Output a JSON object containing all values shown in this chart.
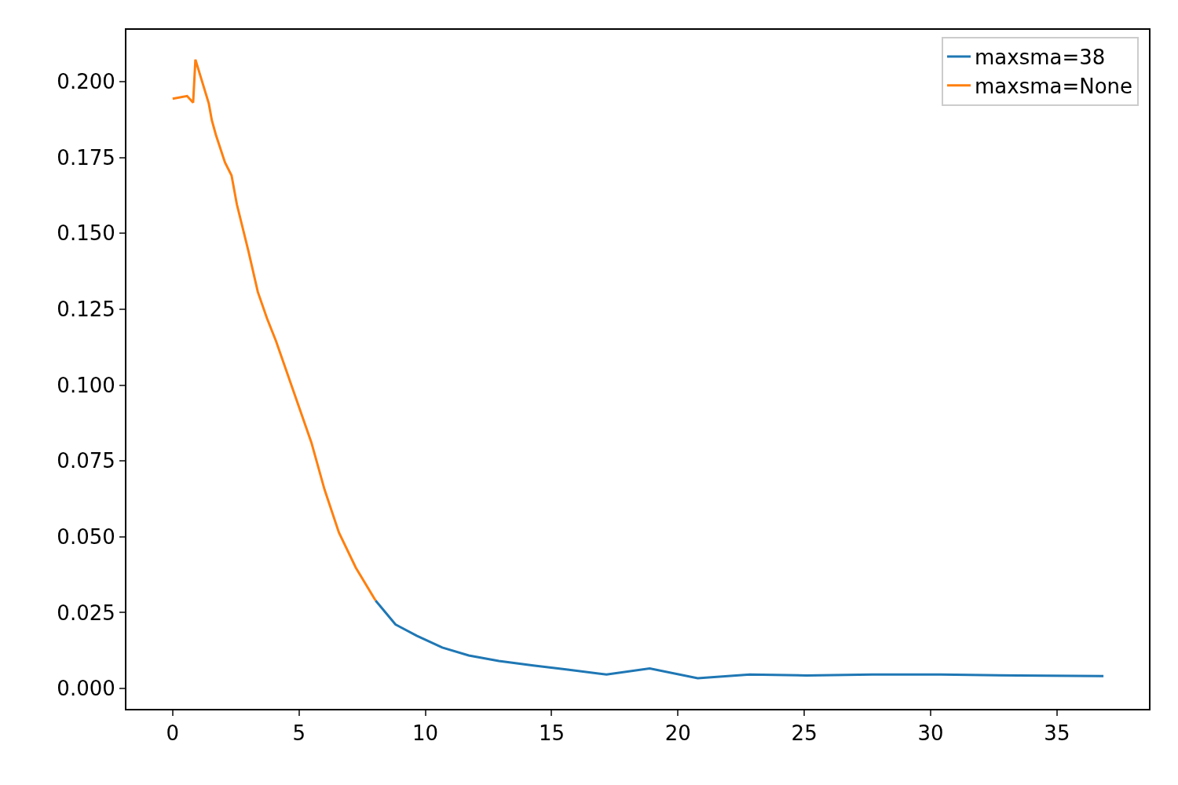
{
  "chart_data": {
    "type": "line",
    "series": [
      {
        "name": "maxsma=38",
        "color": "#1f77b4",
        "x": [
          8.03,
          8.82,
          9.66,
          10.67,
          11.72,
          12.91,
          14.27,
          15.57,
          17.17,
          18.88,
          20.78,
          22.84,
          25.09,
          27.69,
          30.39,
          33.5,
          36.84
        ],
        "values": [
          0.029,
          0.0211,
          0.0174,
          0.0135,
          0.0109,
          0.0091,
          0.0076,
          0.0063,
          0.0046,
          0.0066,
          0.0034,
          0.0046,
          0.0043,
          0.0046,
          0.0046,
          0.0043,
          0.0041
        ]
      },
      {
        "name": "maxsma=None",
        "color": "#ff7f0e",
        "x": [
          0,
          0.57,
          0.81,
          0.9,
          1.43,
          1.55,
          1.71,
          2.07,
          2.33,
          2.54,
          3.0,
          3.37,
          3.73,
          4.09,
          5.49,
          6.01,
          6.58,
          7.25,
          8.03
        ],
        "values": [
          0.1944,
          0.1953,
          0.1931,
          0.2073,
          0.1928,
          0.1873,
          0.1825,
          0.1734,
          0.1691,
          0.1596,
          0.1441,
          0.1307,
          0.1221,
          0.1145,
          0.0811,
          0.0656,
          0.0514,
          0.0398,
          0.029
        ]
      }
    ],
    "xlim": [
      -1.83,
      38.64
    ],
    "xticks": [
      0,
      5,
      10,
      15,
      20,
      25,
      30,
      35
    ],
    "ylim": [
      -0.0067,
      0.2171
    ],
    "yticks": [
      {
        "value": 0,
        "label": "0.000"
      },
      {
        "value": 0.025,
        "label": "0.025"
      },
      {
        "value": 0.05,
        "label": "0.050"
      },
      {
        "value": 0.075,
        "label": "0.075"
      },
      {
        "value": 0.1,
        "label": "0.100"
      },
      {
        "value": 0.125,
        "label": "0.125"
      },
      {
        "value": 0.15,
        "label": "0.150"
      },
      {
        "value": 0.175,
        "label": "0.175"
      },
      {
        "value": 0.2,
        "label": "0.200"
      }
    ],
    "grid": false,
    "legend": "top right",
    "marker": "none",
    "line_style": "solid"
  }
}
